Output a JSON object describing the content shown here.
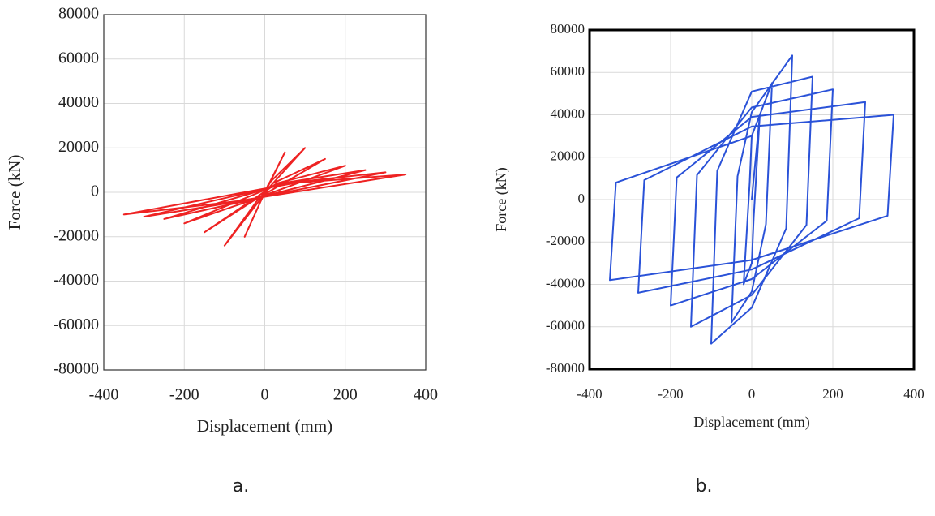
{
  "chart_data": [
    {
      "type": "line",
      "caption": "a.",
      "x_label": "Displacement (mm)",
      "y_label": "Force (kN)",
      "xlim": [
        -400,
        400
      ],
      "xticks": [
        -400,
        -200,
        0,
        200,
        400
      ],
      "ylim": [
        -80000,
        80000
      ],
      "yticks": [
        -80000,
        -60000,
        -40000,
        -20000,
        0,
        20000,
        40000,
        60000,
        80000
      ],
      "grid": true,
      "series": [
        {
          "color": "#ee2222",
          "x": [
            0,
            50,
            -10,
            -50,
            10,
            100,
            -20,
            -100,
            20,
            150,
            -30,
            -150,
            30,
            200,
            -40,
            -200,
            40,
            250,
            -50,
            -250,
            50,
            300,
            -60,
            -300,
            60,
            350,
            -70,
            -350,
            70
          ],
          "values": [
            0,
            18000,
            -4000,
            -20000,
            4000,
            20000,
            -4000,
            -24000,
            4000,
            15000,
            -4000,
            -18000,
            4000,
            12000,
            -4000,
            -14000,
            4000,
            10000,
            -4000,
            -12000,
            4000,
            9000,
            -4000,
            -11000,
            4000,
            8000,
            -4000,
            -10000,
            4000
          ]
        }
      ]
    },
    {
      "type": "line",
      "caption": "b.",
      "x_label": "Displacement (mm)",
      "y_label": "Force (kN)",
      "xlim": [
        -400,
        400
      ],
      "xticks": [
        -400,
        -200,
        0,
        200,
        400
      ],
      "ylim": [
        -80000,
        80000
      ],
      "yticks": [
        -80000,
        -60000,
        -40000,
        -20000,
        0,
        20000,
        40000,
        60000,
        80000
      ],
      "grid": true,
      "series": [
        {
          "color": "#2a52d8",
          "x": [
            0,
            20,
            5,
            0,
            -20,
            -5,
            0,
            50,
            35,
            0,
            -50,
            -35,
            0,
            100,
            85,
            0,
            -100,
            -85,
            0,
            150,
            135,
            0,
            -150,
            -135,
            0,
            200,
            185,
            0,
            -200,
            -185,
            0,
            280,
            265,
            0,
            -280,
            -265,
            0,
            350,
            335,
            0,
            -350,
            -335,
            0
          ],
          "values": [
            0,
            40000,
            -8000,
            -30000,
            -40000,
            8000,
            30000,
            55000,
            -11600,
            -43500,
            -58000,
            11000,
            41250,
            68000,
            -13600,
            -51000,
            -68000,
            13600,
            51000,
            58000,
            -12000,
            -45000,
            -60000,
            11600,
            43500,
            52000,
            -10000,
            -37500,
            -50000,
            10400,
            39000,
            46000,
            -8800,
            -33000,
            -44000,
            9200,
            34500,
            40000,
            -7600,
            -28500,
            -38000,
            8000,
            30000
          ]
        }
      ]
    }
  ]
}
